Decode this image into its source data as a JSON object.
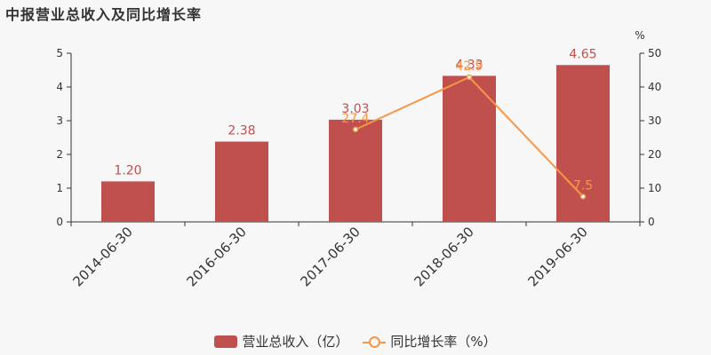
{
  "title": "中报营业总收入及同比增长率",
  "chart_data": {
    "type": "bar",
    "categories": [
      "2014-06-30",
      "2016-06-30",
      "2017-06-30",
      "2018-06-30",
      "2019-06-30"
    ],
    "series": [
      {
        "name": "营业总收入（亿）",
        "type": "bar",
        "axis": "left",
        "values": [
          1.2,
          2.38,
          3.03,
          4.33,
          4.65
        ],
        "labels": [
          "1.20",
          "2.38",
          "3.03",
          "4.33",
          "4.65"
        ],
        "color": "#c0504d"
      },
      {
        "name": "同比增长率（%）",
        "type": "line",
        "axis": "right",
        "values": [
          null,
          null,
          27.4,
          42.9,
          7.5
        ],
        "labels": [
          "",
          "",
          "27.4",
          "42.9",
          "7.5"
        ],
        "color": "#f79646"
      }
    ],
    "y_left": {
      "ylim": [
        0,
        5
      ],
      "ticks": [
        "0",
        "1",
        "2",
        "3",
        "4",
        "5"
      ]
    },
    "y_right": {
      "ylim": [
        0,
        50
      ],
      "ticks": [
        "0",
        "10",
        "20",
        "30",
        "40",
        "50"
      ],
      "unit": "%"
    },
    "legend_position": "bottom-center",
    "grid": false
  }
}
